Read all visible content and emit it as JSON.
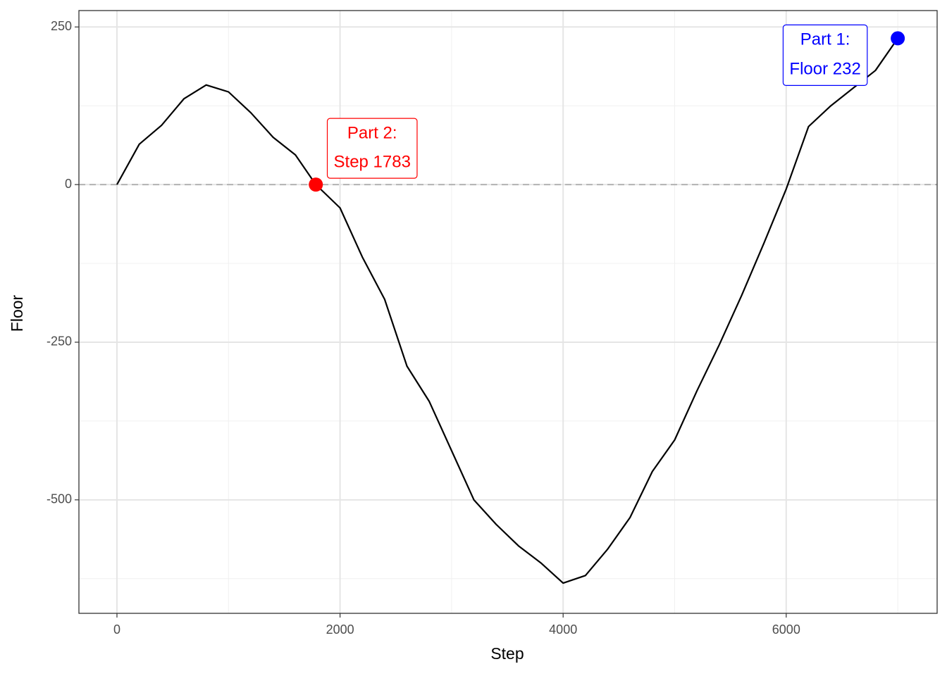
{
  "chart_data": {
    "type": "line",
    "x_label": "Step",
    "y_label": "Floor",
    "x": [
      0,
      200,
      400,
      600,
      800,
      1000,
      1200,
      1400,
      1600,
      1783,
      2000,
      2200,
      2400,
      2600,
      2800,
      3000,
      3200,
      3400,
      3600,
      3800,
      4000,
      4200,
      4400,
      4600,
      4800,
      5000,
      5200,
      5400,
      5600,
      5800,
      6000,
      6200,
      6400,
      6600,
      6800,
      7000
    ],
    "values": [
      0,
      64,
      94,
      136,
      158,
      147,
      114,
      75,
      47,
      0,
      -37,
      -115,
      -182,
      -288,
      -344,
      -422,
      -500,
      -539,
      -573,
      -600,
      -632,
      -620,
      -578,
      -528,
      -455,
      -405,
      -327,
      -254,
      -176,
      -93,
      -7,
      92,
      125,
      153,
      181,
      232
    ],
    "color": "#000000",
    "xlim": [
      -341,
      7353
    ],
    "ylim": [
      -680,
      276
    ],
    "xticks": [
      0,
      2000,
      4000,
      6000
    ],
    "yticks": [
      -500,
      -250,
      0,
      250
    ],
    "x_minor_ticks": [
      1000,
      3000,
      5000,
      7000
    ],
    "y_minor_ticks": [
      -625,
      -375,
      -125,
      125
    ],
    "grid": true,
    "hline": 0,
    "annotations": [
      {
        "x": 1783,
        "y": 0,
        "color": "#ff0000",
        "label": [
          "Part 2:",
          "Step 1783"
        ]
      },
      {
        "x": 7000,
        "y": 232,
        "color": "#0000ff",
        "label": [
          "Part 1:",
          "Floor 232"
        ]
      }
    ]
  }
}
